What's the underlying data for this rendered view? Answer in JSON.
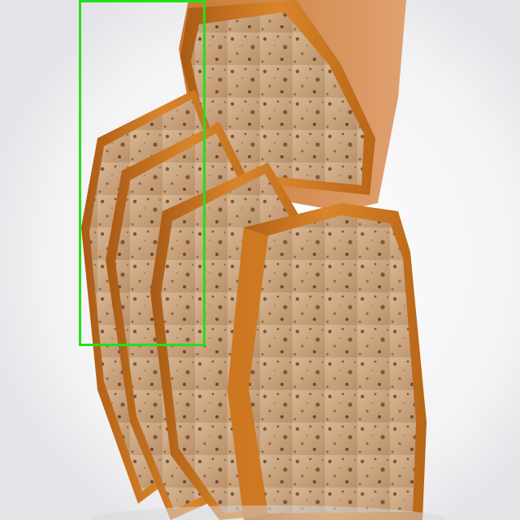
{
  "image": {
    "subject": "banana-bread-loaf-slices",
    "background": "white-plate"
  },
  "colors": {
    "plate": "#f4f4f6",
    "plate_shadow": "#e6e6ea",
    "crust": "#c8741f",
    "crust_dark": "#9c5212",
    "crumb": "#c9a27c",
    "crumb_light": "#dcbd98",
    "speckle": "#6b3d22",
    "annotation_box": "#22e01a"
  },
  "annotation": {
    "shape": "rectangle",
    "label_visible": false
  }
}
